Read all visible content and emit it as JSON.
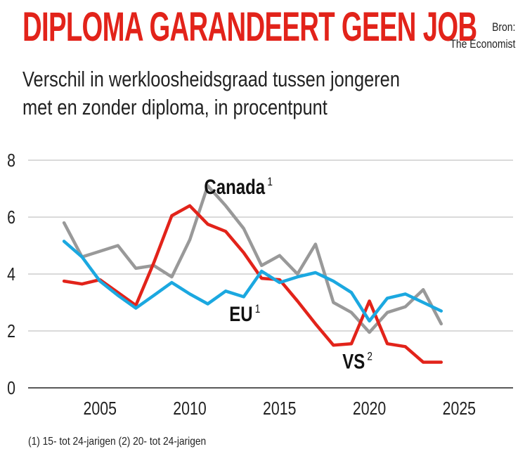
{
  "header": {
    "title": "DIPLOMA GARANDEERT GEEN JOB",
    "source_line1": "Bron:",
    "source_line2": "The Economist",
    "subtitle_line1": "Verschil in werkloosheidsgraad tussen jongeren",
    "subtitle_line2": "met en zonder diploma, in procentpunt"
  },
  "footnote": "(1) 15- tot 24-jarigen (2) 20- tot 24-jarigen",
  "colors": {
    "Canada": "#999999",
    "EU": "#1ba8e0",
    "VS": "#e2231a",
    "grid": "#b5b5b5",
    "axis": "#222222"
  },
  "chart_data": {
    "type": "line",
    "title": "DIPLOMA GARANDEERT GEEN JOB",
    "subtitle": "Verschil in werkloosheidsgraad tussen jongeren met en zonder diploma, in procentpunt",
    "xlabel": "",
    "ylabel": "",
    "xlim": [
      2001,
      2028
    ],
    "ylim": [
      0,
      8
    ],
    "xticks": [
      2005,
      2010,
      2015,
      2020,
      2025
    ],
    "yticks": [
      0,
      2,
      4,
      6,
      8
    ],
    "grid": true,
    "legend": "inline labels",
    "series": [
      {
        "name": "Canada",
        "label": "Canada",
        "sup": "1",
        "x": [
          2003,
          2004,
          2006,
          2007,
          2008,
          2009,
          2010,
          2011,
          2012,
          2013,
          2014,
          2015,
          2016,
          2017,
          2018,
          2019,
          2020,
          2021,
          2022,
          2023,
          2024
        ],
        "values": [
          5.8,
          4.6,
          5.0,
          4.2,
          4.3,
          3.9,
          5.2,
          7.1,
          6.4,
          5.6,
          4.3,
          4.65,
          4.0,
          5.05,
          3.0,
          2.65,
          1.95,
          2.65,
          2.85,
          3.45,
          2.25
        ]
      },
      {
        "name": "EU",
        "label": "EU",
        "sup": "1",
        "x": [
          2003,
          2004,
          2005,
          2006,
          2007,
          2008,
          2009,
          2010,
          2011,
          2012,
          2013,
          2014,
          2015,
          2016,
          2017,
          2018,
          2019,
          2020,
          2021,
          2022,
          2023,
          2024
        ],
        "values": [
          5.15,
          4.6,
          3.75,
          3.25,
          2.8,
          3.25,
          3.7,
          3.3,
          2.95,
          3.4,
          3.2,
          4.1,
          3.7,
          3.9,
          4.05,
          3.75,
          3.35,
          2.35,
          3.15,
          3.3,
          3.0,
          2.7
        ]
      },
      {
        "name": "VS",
        "label": "VS",
        "sup": "2",
        "x": [
          2003,
          2004,
          2005,
          2006,
          2007,
          2008,
          2009,
          2010,
          2011,
          2012,
          2013,
          2014,
          2015,
          2016,
          2017,
          2018,
          2019,
          2020,
          2021,
          2022,
          2023,
          2024
        ],
        "values": [
          3.75,
          3.65,
          3.8,
          3.35,
          2.9,
          4.4,
          6.05,
          6.4,
          5.75,
          5.5,
          4.75,
          3.85,
          3.8,
          3.05,
          2.25,
          1.5,
          1.55,
          3.05,
          1.55,
          1.45,
          0.9,
          0.9
        ]
      }
    ]
  }
}
